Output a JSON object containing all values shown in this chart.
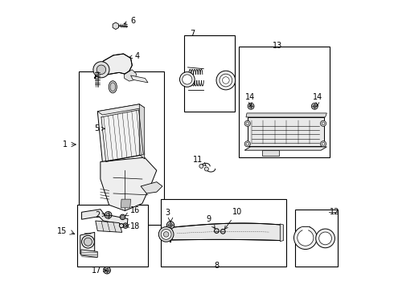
{
  "bg_color": "#ffffff",
  "line_color": "#000000",
  "figure_width": 4.9,
  "figure_height": 3.6,
  "dpi": 100,
  "boxes": {
    "main": [
      0.09,
      0.22,
      0.295,
      0.535
    ],
    "bellows": [
      0.455,
      0.615,
      0.175,
      0.265
    ],
    "resonator": [
      0.645,
      0.455,
      0.315,
      0.385
    ],
    "bracket": [
      0.085,
      0.075,
      0.245,
      0.215
    ],
    "pipe": [
      0.375,
      0.075,
      0.435,
      0.235
    ],
    "rings": [
      0.84,
      0.075,
      0.148,
      0.2
    ]
  },
  "label_positions": {
    "1": [
      0.055,
      0.5,
      0.085,
      0.5
    ],
    "2": [
      0.178,
      0.255,
      0.185,
      0.255
    ],
    "3": [
      0.4,
      0.245,
      0.408,
      0.23
    ],
    "4": [
      0.285,
      0.805,
      0.265,
      0.8
    ],
    "5": [
      0.165,
      0.555,
      0.188,
      0.555
    ],
    "6": [
      0.285,
      0.93,
      0.268,
      0.918
    ],
    "7": [
      0.486,
      0.883,
      0.486,
      0.875
    ],
    "8": [
      0.565,
      0.082,
      0.565,
      0.09
    ],
    "9": [
      0.555,
      0.248,
      0.566,
      0.23
    ],
    "10": [
      0.628,
      0.272,
      0.618,
      0.245
    ],
    "11": [
      0.538,
      0.445,
      0.543,
      0.432
    ],
    "12": [
      0.955,
      0.265,
      0.984,
      0.265
    ],
    "13": [
      0.78,
      0.84,
      0.78,
      0.84
    ],
    "14a": [
      0.695,
      0.66,
      0.7,
      0.638
    ],
    "14b": [
      0.875,
      0.66,
      0.868,
      0.635
    ],
    "15": [
      0.05,
      0.2,
      0.085,
      0.185
    ],
    "16": [
      0.268,
      0.272,
      0.258,
      0.255
    ],
    "17": [
      0.168,
      0.068,
      0.175,
      0.082
    ],
    "18": [
      0.268,
      0.222,
      0.258,
      0.215
    ]
  }
}
